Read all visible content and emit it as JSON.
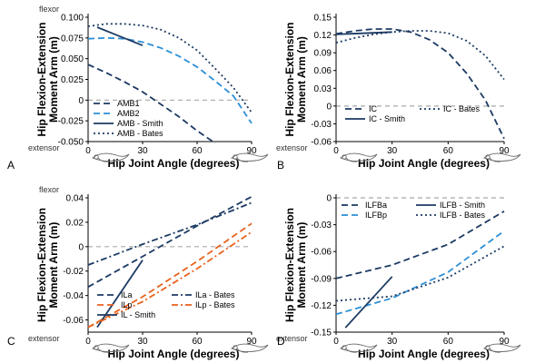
{
  "colors": {
    "dark_navy": "#1c3a63",
    "light_blue": "#2c8fd6",
    "orange": "#e8621d",
    "zero_line": "#a8a8a8"
  },
  "shared": {
    "xlabel": "Hip Joint Angle (degrees)",
    "ylabel_line1": "Hip Flexion-Extension",
    "ylabel_line2": "Moment Arm (m)",
    "flexor_label": "flexor",
    "extensor_label": "extensor",
    "x_ticks": [
      "0",
      "30",
      "60",
      "90"
    ]
  },
  "chart_data": [
    {
      "panel": "A",
      "type": "line",
      "xlim": [
        0,
        90
      ],
      "ylim": [
        -0.05,
        0.1
      ],
      "y_ticks": [
        -0.05,
        -0.025,
        0,
        0.025,
        0.05,
        0.075,
        0.1
      ],
      "y_tick_labels": [
        "-0.050",
        "-0.025",
        "0",
        "0.025",
        "0.050",
        "0.075",
        "0.100"
      ],
      "show_flexor_label": true,
      "legend_cols": 1,
      "series": [
        {
          "name": "AMB1",
          "color": "dark_navy",
          "style": "dash",
          "x": [
            0,
            10,
            20,
            30,
            40,
            50,
            60,
            70
          ],
          "y": [
            0.043,
            0.033,
            0.022,
            0.01,
            -0.005,
            -0.02,
            -0.037,
            -0.052
          ]
        },
        {
          "name": "AMB2",
          "color": "light_blue",
          "style": "dash",
          "x": [
            0,
            10,
            20,
            30,
            40,
            50,
            60,
            70,
            80,
            90
          ],
          "y": [
            0.074,
            0.075,
            0.074,
            0.07,
            0.063,
            0.053,
            0.04,
            0.023,
            0.005,
            -0.028
          ]
        },
        {
          "name": "AMB - Smith",
          "color": "dark_navy",
          "style": "solid",
          "x": [
            5,
            30
          ],
          "y": [
            0.088,
            0.066
          ]
        },
        {
          "name": "AMB - Bates",
          "color": "dark_navy",
          "style": "dot",
          "x": [
            0,
            10,
            20,
            30,
            40,
            50,
            60,
            70,
            80,
            90
          ],
          "y": [
            0.089,
            0.092,
            0.092,
            0.09,
            0.085,
            0.075,
            0.06,
            0.038,
            0.015,
            -0.015
          ]
        }
      ]
    },
    {
      "panel": "B",
      "type": "line",
      "xlim": [
        0,
        90
      ],
      "ylim": [
        -0.06,
        0.15
      ],
      "y_ticks": [
        -0.06,
        -0.03,
        0,
        0.03,
        0.06,
        0.09,
        0.12,
        0.15
      ],
      "y_tick_labels": [
        "-0.06",
        "-0.03",
        "0",
        "0.03",
        "0.06",
        "0.09",
        "0.12",
        "0.15"
      ],
      "show_flexor_label": false,
      "legend_cols": 2,
      "series": [
        {
          "name": "IC",
          "color": "dark_navy",
          "style": "dash",
          "x": [
            0,
            10,
            20,
            30,
            40,
            50,
            60,
            70,
            80,
            90
          ],
          "y": [
            0.122,
            0.127,
            0.13,
            0.13,
            0.125,
            0.112,
            0.09,
            0.055,
            0.01,
            -0.055
          ]
        },
        {
          "name": "IC - Smith",
          "color": "dark_navy",
          "style": "solid",
          "x": [
            0,
            30
          ],
          "y": [
            0.121,
            0.125
          ]
        },
        {
          "name": "IC - Bates",
          "color": "dark_navy",
          "style": "dot",
          "x": [
            0,
            10,
            20,
            30,
            40,
            50,
            60,
            70,
            80,
            90
          ],
          "y": [
            0.107,
            0.115,
            0.121,
            0.125,
            0.127,
            0.127,
            0.123,
            0.11,
            0.085,
            0.045
          ]
        }
      ]
    },
    {
      "panel": "C",
      "type": "line",
      "xlim": [
        0,
        90
      ],
      "ylim": [
        -0.07,
        0.04
      ],
      "y_ticks": [
        -0.06,
        -0.04,
        -0.02,
        0,
        0.02,
        0.04
      ],
      "y_tick_labels": [
        "-0.06",
        "-0.04",
        "-0.02",
        "0",
        "0.02",
        "0.04"
      ],
      "show_flexor_label": true,
      "legend_cols": 2,
      "series": [
        {
          "name": "ILa",
          "color": "dark_navy",
          "style": "dash",
          "x": [
            0,
            30,
            60,
            90
          ],
          "y": [
            -0.033,
            -0.008,
            0.017,
            0.041
          ]
        },
        {
          "name": "ILp",
          "color": "orange",
          "style": "dash",
          "x": [
            0,
            30,
            60,
            90
          ],
          "y": [
            -0.066,
            -0.041,
            -0.012,
            0.019
          ]
        },
        {
          "name": "IL - Smith",
          "color": "dark_navy",
          "style": "solid",
          "x": [
            5,
            30
          ],
          "y": [
            -0.066,
            -0.011
          ]
        },
        {
          "name": "ILa - Bates",
          "color": "dark_navy",
          "style": "dashdot",
          "x": [
            0,
            30,
            60,
            90
          ],
          "y": [
            -0.015,
            0.002,
            0.018,
            0.036
          ]
        },
        {
          "name": "ILp - Bates",
          "color": "orange",
          "style": "dashdot",
          "x": [
            0,
            30,
            60,
            90
          ],
          "y": [
            -0.066,
            -0.045,
            -0.018,
            0.012
          ]
        }
      ]
    },
    {
      "panel": "D",
      "type": "line",
      "xlim": [
        0,
        90
      ],
      "ylim": [
        -0.15,
        0.0
      ],
      "y_ticks": [
        -0.15,
        -0.12,
        -0.09,
        -0.06,
        -0.03,
        0
      ],
      "y_tick_labels": [
        "-0.15",
        "-0.12",
        "-0.09",
        "-0.06",
        "-0.03",
        "0"
      ],
      "show_flexor_label": false,
      "legend_cols": 2,
      "series": [
        {
          "name": "ILFBa",
          "color": "dark_navy",
          "style": "dash",
          "x": [
            0,
            30,
            60,
            90
          ],
          "y": [
            -0.09,
            -0.075,
            -0.052,
            -0.015
          ]
        },
        {
          "name": "ILFBp",
          "color": "light_blue",
          "style": "dash",
          "x": [
            0,
            30,
            60,
            90
          ],
          "y": [
            -0.13,
            -0.112,
            -0.083,
            -0.037
          ]
        },
        {
          "name": "ILFB - Smith",
          "color": "dark_navy",
          "style": "solid",
          "x": [
            5,
            30
          ],
          "y": [
            -0.145,
            -0.088
          ]
        },
        {
          "name": "ILFB - Bates",
          "color": "dark_navy",
          "style": "dot",
          "x": [
            0,
            30,
            60,
            90
          ],
          "y": [
            -0.115,
            -0.11,
            -0.089,
            -0.054
          ]
        }
      ]
    }
  ]
}
